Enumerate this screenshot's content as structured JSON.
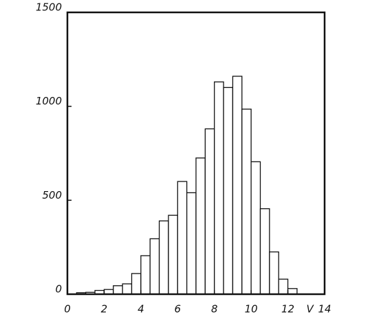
{
  "chart_data": {
    "type": "histogram",
    "x_label": "V",
    "bins": [
      0.5,
      1,
      1.5,
      2,
      2.5,
      3,
      3.5,
      4,
      4.5,
      5,
      5.5,
      6,
      6.5,
      7,
      7.5,
      8,
      8.5,
      9,
      9.5,
      10,
      10.5,
      11,
      11.5,
      12,
      12.5
    ],
    "values": [
      8,
      10,
      20,
      25,
      45,
      55,
      110,
      205,
      295,
      390,
      420,
      600,
      540,
      725,
      880,
      1130,
      1100,
      1160,
      985,
      705,
      455,
      225,
      80,
      30
    ],
    "color": "#ffffff",
    "xlim": [
      0,
      14
    ],
    "xticks": [
      0,
      2,
      4,
      6,
      8,
      10,
      12,
      14
    ],
    "ylim": [
      0,
      1500
    ],
    "yticks": [
      0,
      500,
      1000,
      1500
    ]
  }
}
